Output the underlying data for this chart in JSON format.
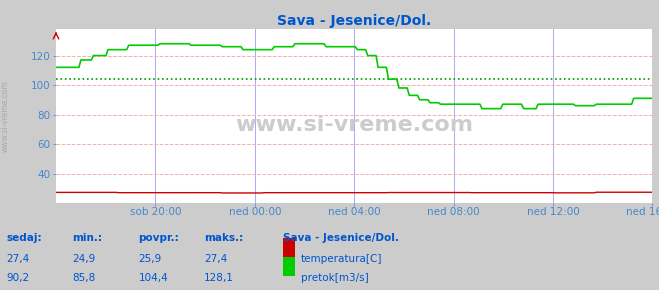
{
  "title": "Sava - Jesenice/Dol.",
  "title_color": "#0055cc",
  "bg_color": "#cccccc",
  "plot_bg_color": "#ffffff",
  "grid_color_h": "#ffaaaa",
  "grid_color_v": "#aaaaff",
  "xlabel_color": "#4488cc",
  "ylabel_color": "#4488cc",
  "tick_labels": [
    "sob 20:00",
    "ned 00:00",
    "ned 04:00",
    "ned 08:00",
    "ned 12:00",
    "ned 16:00"
  ],
  "yticks": [
    40,
    60,
    80,
    100,
    120
  ],
  "ylim": [
    20,
    138
  ],
  "xlim": [
    0,
    288
  ],
  "watermark": "www.si-vreme.com",
  "watermark_color": "#bbbbbb",
  "sidebar_text": "www.si-vreme.com",
  "temp_color": "#cc0000",
  "flow_color": "#00cc00",
  "avg_color": "#009900",
  "footer_labels": [
    "sedaj:",
    "min.:",
    "povpr.:",
    "maks.:"
  ],
  "footer_values_temp": [
    "27,4",
    "24,9",
    "25,9",
    "27,4"
  ],
  "footer_values_flow": [
    "90,2",
    "85,8",
    "104,4",
    "128,1"
  ],
  "legend_title": "Sava - Jesenice/Dol.",
  "legend_temp": "temperatura[C]",
  "legend_flow": "pretok[m3/s]",
  "footer_color": "#0055cc",
  "tick_x_positions": [
    48,
    96,
    144,
    192,
    240,
    288
  ],
  "avg_flow": 104.4,
  "n_points": 288
}
